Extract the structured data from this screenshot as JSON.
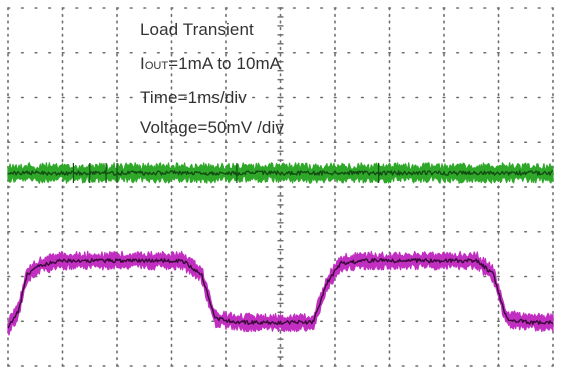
{
  "chart_data": {
    "type": "line",
    "title": "Load Transient",
    "annotations": [
      {
        "prefix": "I",
        "subscript": "OUT",
        "text": "=1mA to 10mA"
      },
      {
        "text": "Time=1ms/div"
      },
      {
        "text": "Voltage=50mV /div"
      }
    ],
    "grid": "dotted",
    "grid_divisions": {
      "x": 10,
      "y": 8
    },
    "xlabel": "",
    "ylabel": "",
    "x_unit": "ms",
    "xlim": [
      0,
      10
    ],
    "series": [
      {
        "color": "#2fa82a",
        "x": [
          0,
          10
        ],
        "values": [
          0,
          0
        ]
      },
      {
        "color": "#9b1c9b",
        "x": [
          0,
          0.2,
          0.35,
          0.6,
          1.0,
          3.2,
          3.55,
          3.8,
          4.3,
          5.6,
          5.85,
          6.1,
          6.5,
          8.6,
          8.9,
          9.15,
          9.6,
          10
        ],
        "values": [
          -40,
          -20,
          20,
          30,
          35,
          35,
          20,
          -30,
          -34,
          -34,
          10,
          32,
          35,
          35,
          20,
          -30,
          -34,
          -34
        ]
      }
    ],
    "colors": {
      "grid": "#6e6e6e",
      "green_trace": "#2fa82a",
      "green_core": "#134d13",
      "magenta_trace": "#c12fc1",
      "magenta_core": "#3a0a3a"
    }
  }
}
